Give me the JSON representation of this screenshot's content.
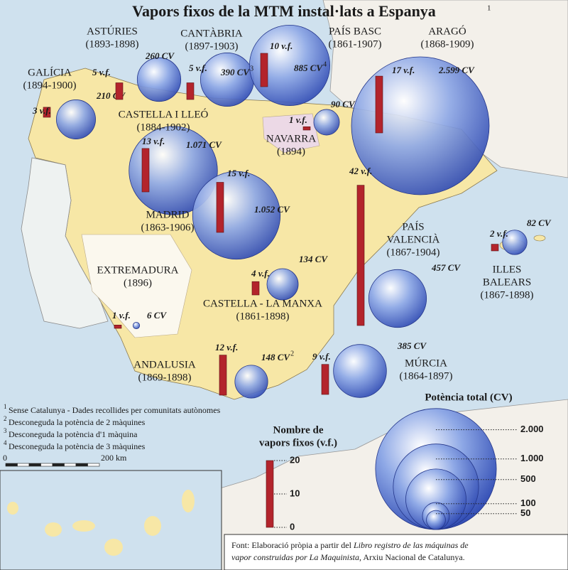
{
  "title": "Vapors fixos de la MTM instal·lats a Espanya",
  "title_note": "1",
  "regions": [
    {
      "name_lines": [
        "GALÍCIA"
      ],
      "years": "(1894-1900)",
      "vf": 3,
      "vf_label": "3 v.f.",
      "cv": 210,
      "cv_label": "210 CV"
    },
    {
      "name_lines": [
        "ASTÚRIES"
      ],
      "years": "(1893-1898)",
      "vf": 5,
      "vf_label": "5 v.f.",
      "cv": 260,
      "cv_label": "260 CV"
    },
    {
      "name_lines": [
        "CANTÀBRIA"
      ],
      "years": "(1897-1903)",
      "vf": 5,
      "vf_label": "5 v.f.",
      "cv": 390,
      "cv_label": "390 CV",
      "note": "3"
    },
    {
      "name_lines": [
        "PAÍS BASC"
      ],
      "years": "(1861-1907)",
      "vf": 10,
      "vf_label": "10 v.f.",
      "cv": 885,
      "cv_label": "885 CV",
      "note": "4"
    },
    {
      "name_lines": [
        "NAVARRA"
      ],
      "years": "(1894)",
      "vf": 1,
      "vf_label": "1 v.f.",
      "cv": 90,
      "cv_label": "90 CV"
    },
    {
      "name_lines": [
        "ARAGÓ"
      ],
      "years": "(1868-1909)",
      "vf": 17,
      "vf_label": "17 v.f.",
      "cv": 2599,
      "cv_label": "2.599 CV"
    },
    {
      "name_lines": [
        "CASTELLA I LLEÓ"
      ],
      "years": "(1884-1902)",
      "vf": 13,
      "vf_label": "13 v.f.",
      "cv": 1071,
      "cv_label": "1.071 CV"
    },
    {
      "name_lines": [
        "MADRID"
      ],
      "years": "(1863-1906)",
      "vf": 15,
      "vf_label": "15 v.f.",
      "cv": 1052,
      "cv_label": "1.052 CV"
    },
    {
      "name_lines": [
        "EXTREMADURA"
      ],
      "years": "(1896)",
      "vf": 1,
      "vf_label": "1 v.f.",
      "cv": 6,
      "cv_label": "6 CV"
    },
    {
      "name_lines": [
        "CASTELLA - LA MANXA"
      ],
      "years": "(1861-1898)",
      "vf": 4,
      "vf_label": "4 v.f.",
      "cv": 134,
      "cv_label": "134 CV"
    },
    {
      "name_lines": [
        "PAÍS",
        "VALENCIÀ"
      ],
      "years": "(1867-1904)",
      "vf": 42,
      "vf_label": "42 v.f.",
      "cv": 457,
      "cv_label": "457 CV"
    },
    {
      "name_lines": [
        "ILLES",
        "BALEARS"
      ],
      "years": "(1867-1898)",
      "vf": 2,
      "vf_label": "2 v.f.",
      "cv": 82,
      "cv_label": "82 CV"
    },
    {
      "name_lines": [
        "ANDALUSIA"
      ],
      "years": "(1869-1898)",
      "vf": 12,
      "vf_label": "12 v.f.",
      "cv": 148,
      "cv_label": "148 CV",
      "note": "2"
    },
    {
      "name_lines": [
        "MÚRCIA"
      ],
      "years": "(1864-1897)",
      "vf": 9,
      "vf_label": "9 v.f.",
      "cv": 385,
      "cv_label": "385 CV"
    }
  ],
  "footnotes": [
    {
      "mark": "1",
      "text": "Sense Catalunya - Dades recollides per comunitats autònomes"
    },
    {
      "mark": "2",
      "text": "Desconeguda la potència de 2 màquines"
    },
    {
      "mark": "3",
      "text": "Desconeguda la potència d'1 màquina"
    },
    {
      "mark": "4",
      "text": "Desconeguda la potència de 3 màquines"
    }
  ],
  "scale_bar": {
    "start": "0",
    "end": "200 km"
  },
  "vf_legend": {
    "title_lines": [
      "Nombre de",
      "vapors fixos (v.f.)"
    ],
    "ticks": [
      0,
      10,
      20
    ]
  },
  "cv_legend": {
    "title": "Potència total (CV)",
    "ticks": [
      {
        "value": 2000,
        "label": "2.000"
      },
      {
        "value": 1000,
        "label": "1.000"
      },
      500,
      100,
      50
    ]
  },
  "source": [
    [
      {
        "text": "Font: Elaboració pròpia a partir del ",
        "italic": false
      },
      {
        "text": "Libro registro de las máquinas de",
        "italic": true
      }
    ],
    [
      {
        "text": "vapor construidas por La Maquinista",
        "italic": true
      },
      {
        "text": ", Arxiu Nacional de Catalunya.",
        "italic": false
      }
    ]
  ]
}
